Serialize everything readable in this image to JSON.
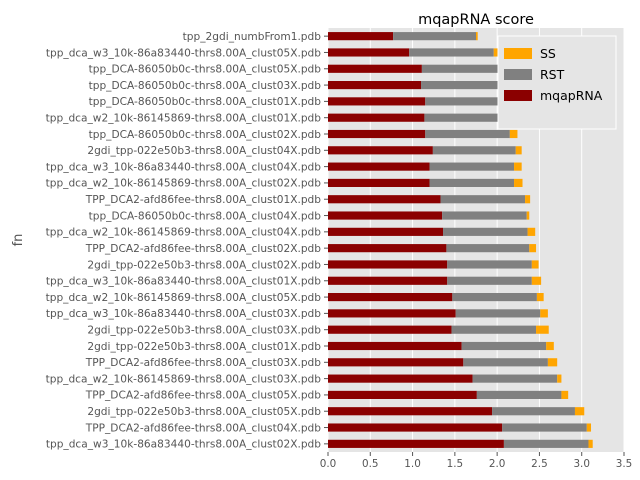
{
  "chart_data": {
    "type": "bar",
    "orientation": "horizontal",
    "stacked": true,
    "title": "mqapRNA score",
    "xlabel": "",
    "ylabel": "fn",
    "xlim": [
      0,
      3.5
    ],
    "xticks": [
      "0.0",
      "0.5",
      "1.0",
      "1.5",
      "2.0",
      "2.5",
      "3.0",
      "3.5"
    ],
    "grid": true,
    "legend_position": "upper-right",
    "legend": [
      {
        "name": "SS",
        "color": "#FFA500"
      },
      {
        "name": "RST",
        "color": "#808080"
      },
      {
        "name": "mqapRNA",
        "color": "#8B0000"
      }
    ],
    "categories": [
      "tpp_2gdi_numbFrom1.pdb",
      "tpp_dca_w3_10k-86a83440-thrs8.00A_clust05X.pdb",
      "tpp_DCA-86050b0c-thrs8.00A_clust05X.pdb",
      "tpp_DCA-86050b0c-thrs8.00A_clust03X.pdb",
      "tpp_DCA-86050b0c-thrs8.00A_clust01X.pdb",
      "tpp_dca_w2_10k-86145869-thrs8.00A_clust01X.pdb",
      "tpp_DCA-86050b0c-thrs8.00A_clust02X.pdb",
      "2gdi_tpp-022e50b3-thrs8.00A_clust04X.pdb",
      "tpp_dca_w3_10k-86a83440-thrs8.00A_clust04X.pdb",
      "tpp_dca_w2_10k-86145869-thrs8.00A_clust02X.pdb",
      "TPP_DCA2-afd86fee-thrs8.00A_clust01X.pdb",
      "tpp_DCA-86050b0c-thrs8.00A_clust04X.pdb",
      "tpp_dca_w2_10k-86145869-thrs8.00A_clust04X.pdb",
      "TPP_DCA2-afd86fee-thrs8.00A_clust02X.pdb",
      "2gdi_tpp-022e50b3-thrs8.00A_clust02X.pdb",
      "tpp_dca_w3_10k-86a83440-thrs8.00A_clust01X.pdb",
      "tpp_dca_w2_10k-86145869-thrs8.00A_clust05X.pdb",
      "tpp_dca_w3_10k-86a83440-thrs8.00A_clust03X.pdb",
      "2gdi_tpp-022e50b3-thrs8.00A_clust03X.pdb",
      "2gdi_tpp-022e50b3-thrs8.00A_clust01X.pdb",
      "TPP_DCA2-afd86fee-thrs8.00A_clust03X.pdb",
      "tpp_dca_w2_10k-86145869-thrs8.00A_clust03X.pdb",
      "TPP_DCA2-afd86fee-thrs8.00A_clust05X.pdb",
      "2gdi_tpp-022e50b3-thrs8.00A_clust05X.pdb",
      "TPP_DCA2-afd86fee-thrs8.00A_clust04X.pdb",
      "tpp_dca_w3_10k-86a83440-thrs8.00A_clust02X.pdb"
    ],
    "series": [
      {
        "name": "mqapRNA",
        "color": "#8B0000",
        "values": [
          0.77,
          0.96,
          1.11,
          1.1,
          1.15,
          1.14,
          1.15,
          1.24,
          1.2,
          1.2,
          1.33,
          1.35,
          1.36,
          1.4,
          1.41,
          1.41,
          1.47,
          1.51,
          1.46,
          1.58,
          1.6,
          1.71,
          1.76,
          1.94,
          2.06,
          2.08
        ]
      },
      {
        "name": "RST",
        "color": "#808080",
        "values": [
          0.98,
          1.0,
          0.91,
          0.93,
          0.97,
          1.0,
          1.0,
          0.98,
          1.0,
          1.0,
          1.0,
          1.0,
          1.0,
          0.98,
          1.0,
          1.0,
          1.0,
          1.0,
          1.0,
          1.0,
          1.0,
          1.0,
          1.0,
          0.98,
          1.0,
          1.0
        ]
      },
      {
        "name": "SS",
        "color": "#FFA500",
        "values": [
          0.02,
          0.08,
          0.02,
          0.02,
          0.05,
          0.07,
          0.09,
          0.07,
          0.09,
          0.1,
          0.06,
          0.03,
          0.09,
          0.08,
          0.08,
          0.11,
          0.08,
          0.09,
          0.15,
          0.09,
          0.11,
          0.05,
          0.08,
          0.11,
          0.05,
          0.05
        ]
      }
    ]
  }
}
